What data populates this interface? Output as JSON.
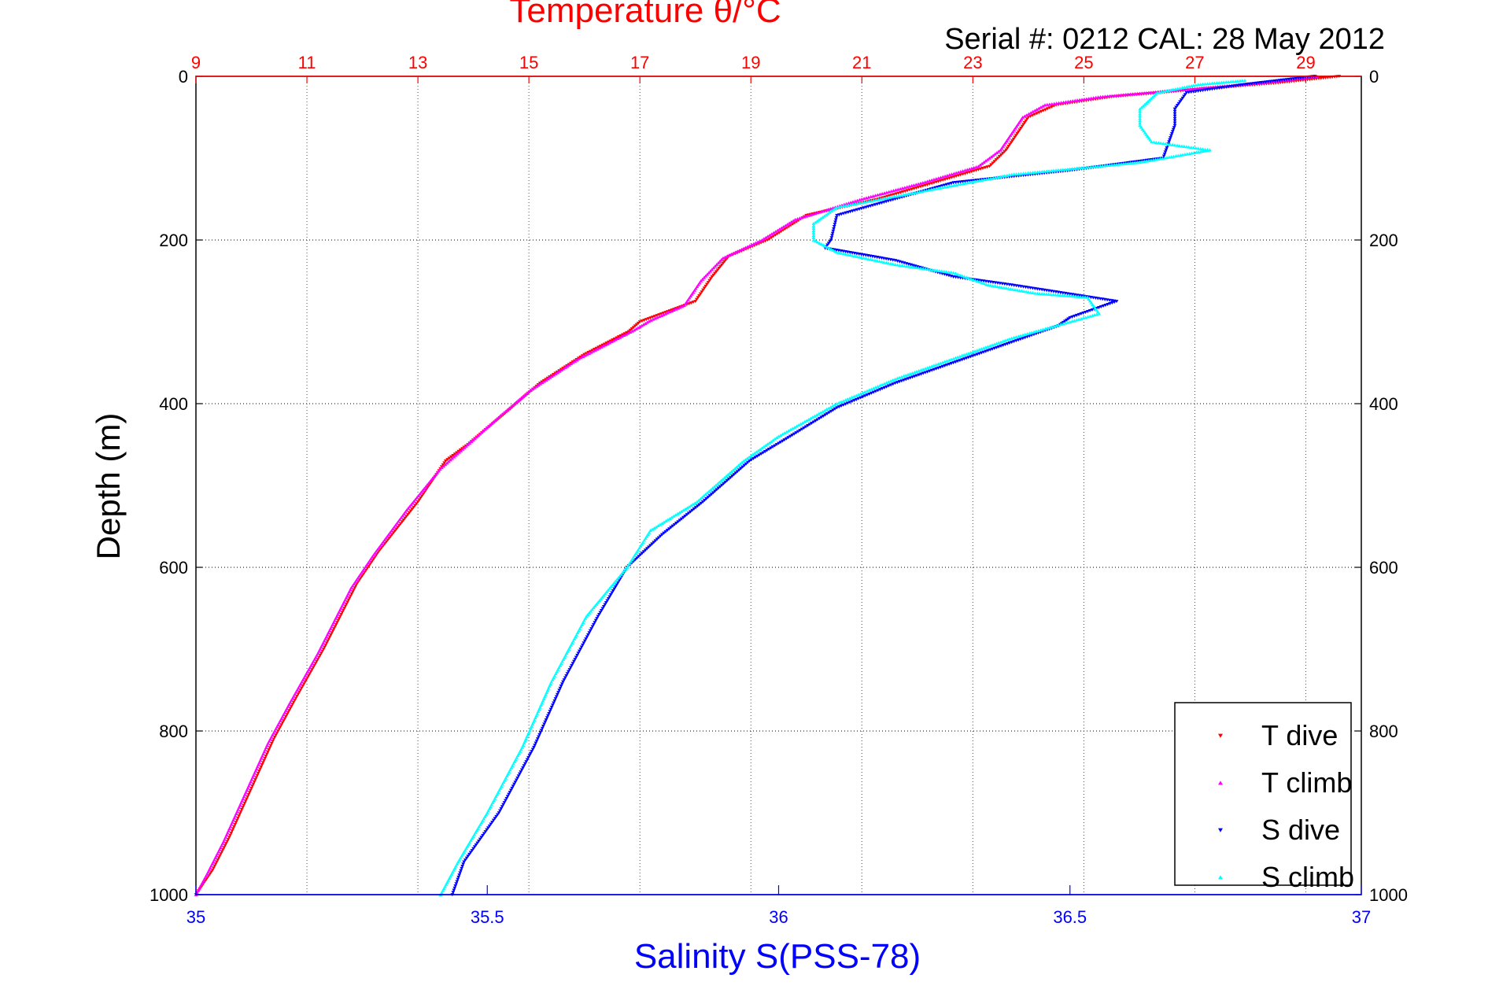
{
  "chart_data": {
    "type": "scatter",
    "title": "Temperature θ/°C",
    "annotation": "Serial #: 0212  CAL: 28 May 2012",
    "ylabel": "Depth (m)",
    "xlabel_bottom": "Salinity S(PSS-78)",
    "xlabel_top": "Temperature θ/°C",
    "ylim": [
      1000,
      0
    ],
    "xlim_bottom": [
      35,
      37
    ],
    "xlim_top": [
      9,
      30
    ],
    "y_ticks": [
      "0",
      "200",
      "400",
      "600",
      "800",
      "1000"
    ],
    "top_ticks": [
      "9",
      "11",
      "13",
      "15",
      "17",
      "19",
      "21",
      "23",
      "25",
      "27",
      "29"
    ],
    "bottom_ticks": [
      "35",
      "35.5",
      "36",
      "36.5",
      "37"
    ],
    "grid": "temperature (top axis) dotted red, depth dotted black",
    "legend_position": "bottom-right",
    "legend": [
      "T dive",
      "T climb",
      "S dive",
      "S climb"
    ],
    "colors": {
      "t_dive": "#ff0000",
      "t_climb": "#ff00ff",
      "s_dive": "#0000ff",
      "s_climb": "#00ffff",
      "temperature_axis": "#ff0000",
      "salinity_axis": "#0000ff"
    },
    "series": [
      {
        "name": "T dive",
        "axis": "temperature",
        "marker": "triangle-down",
        "points": [
          [
            29.6,
            0
          ],
          [
            28.5,
            8
          ],
          [
            27.2,
            15
          ],
          [
            25.5,
            25
          ],
          [
            24.5,
            35
          ],
          [
            24.0,
            50
          ],
          [
            23.8,
            70
          ],
          [
            23.6,
            90
          ],
          [
            23.3,
            110
          ],
          [
            22.3,
            130
          ],
          [
            21.3,
            150
          ],
          [
            20.0,
            170
          ],
          [
            19.3,
            200
          ],
          [
            18.6,
            220
          ],
          [
            18.3,
            245
          ],
          [
            18.0,
            275
          ],
          [
            17.0,
            300
          ],
          [
            16.8,
            312
          ],
          [
            16.0,
            340
          ],
          [
            15.2,
            375
          ],
          [
            14.6,
            410
          ],
          [
            13.9,
            450
          ],
          [
            13.5,
            470
          ],
          [
            13.0,
            520
          ],
          [
            12.3,
            580
          ],
          [
            11.9,
            620
          ],
          [
            11.3,
            700
          ],
          [
            10.8,
            760
          ],
          [
            10.4,
            810
          ],
          [
            10.0,
            870
          ],
          [
            9.6,
            930
          ],
          [
            9.3,
            970
          ],
          [
            9.0,
            1000
          ]
        ]
      },
      {
        "name": "T climb",
        "axis": "temperature",
        "marker": "triangle-up",
        "points": [
          [
            29.2,
            0
          ],
          [
            28.2,
            8
          ],
          [
            27.0,
            15
          ],
          [
            25.3,
            25
          ],
          [
            24.3,
            35
          ],
          [
            23.9,
            50
          ],
          [
            23.7,
            70
          ],
          [
            23.5,
            90
          ],
          [
            23.1,
            110
          ],
          [
            22.1,
            130
          ],
          [
            21.0,
            150
          ],
          [
            19.8,
            175
          ],
          [
            19.2,
            200
          ],
          [
            18.5,
            222
          ],
          [
            18.1,
            250
          ],
          [
            17.8,
            280
          ],
          [
            17.2,
            298
          ],
          [
            16.9,
            310
          ],
          [
            15.9,
            345
          ],
          [
            15.0,
            385
          ],
          [
            14.4,
            420
          ],
          [
            13.9,
            450
          ],
          [
            13.4,
            480
          ],
          [
            12.8,
            530
          ],
          [
            12.2,
            585
          ],
          [
            11.8,
            625
          ],
          [
            11.2,
            705
          ],
          [
            10.7,
            765
          ],
          [
            10.3,
            815
          ],
          [
            9.9,
            875
          ],
          [
            9.5,
            935
          ],
          [
            9.2,
            975
          ],
          [
            9.0,
            1000
          ]
        ]
      },
      {
        "name": "S dive",
        "axis": "salinity",
        "marker": "triangle-down",
        "points": [
          [
            36.92,
            0
          ],
          [
            36.8,
            10
          ],
          [
            36.7,
            20
          ],
          [
            36.68,
            40
          ],
          [
            36.68,
            60
          ],
          [
            36.67,
            80
          ],
          [
            36.66,
            100
          ],
          [
            36.5,
            115
          ],
          [
            36.3,
            130
          ],
          [
            36.2,
            150
          ],
          [
            36.1,
            170
          ],
          [
            36.09,
            200
          ],
          [
            36.08,
            210
          ],
          [
            36.2,
            225
          ],
          [
            36.3,
            245
          ],
          [
            36.4,
            255
          ],
          [
            36.58,
            275
          ],
          [
            36.5,
            295
          ],
          [
            36.48,
            305
          ],
          [
            36.4,
            325
          ],
          [
            36.3,
            350
          ],
          [
            36.2,
            375
          ],
          [
            36.1,
            405
          ],
          [
            36.02,
            440
          ],
          [
            35.95,
            470
          ],
          [
            35.87,
            520
          ],
          [
            35.8,
            560
          ],
          [
            35.74,
            600
          ],
          [
            35.69,
            660
          ],
          [
            35.63,
            740
          ],
          [
            35.58,
            820
          ],
          [
            35.52,
            900
          ],
          [
            35.46,
            960
          ],
          [
            35.44,
            1000
          ]
        ]
      },
      {
        "name": "S climb",
        "axis": "salinity",
        "marker": "triangle-up",
        "points": [
          [
            36.8,
            5
          ],
          [
            36.72,
            10
          ],
          [
            36.65,
            20
          ],
          [
            36.62,
            40
          ],
          [
            36.62,
            60
          ],
          [
            36.64,
            80
          ],
          [
            36.74,
            90
          ],
          [
            36.62,
            105
          ],
          [
            36.4,
            120
          ],
          [
            36.25,
            140
          ],
          [
            36.1,
            160
          ],
          [
            36.06,
            180
          ],
          [
            36.06,
            200
          ],
          [
            36.1,
            215
          ],
          [
            36.2,
            230
          ],
          [
            36.3,
            240
          ],
          [
            36.36,
            255
          ],
          [
            36.44,
            265
          ],
          [
            36.53,
            270
          ],
          [
            36.55,
            290
          ],
          [
            36.5,
            300
          ],
          [
            36.4,
            320
          ],
          [
            36.3,
            345
          ],
          [
            36.2,
            370
          ],
          [
            36.1,
            400
          ],
          [
            36.0,
            440
          ],
          [
            35.94,
            470
          ],
          [
            35.86,
            520
          ],
          [
            35.78,
            555
          ],
          [
            35.74,
            600
          ],
          [
            35.67,
            660
          ],
          [
            35.61,
            740
          ],
          [
            35.56,
            820
          ],
          [
            35.5,
            900
          ],
          [
            35.45,
            960
          ],
          [
            35.42,
            1000
          ]
        ]
      }
    ]
  }
}
